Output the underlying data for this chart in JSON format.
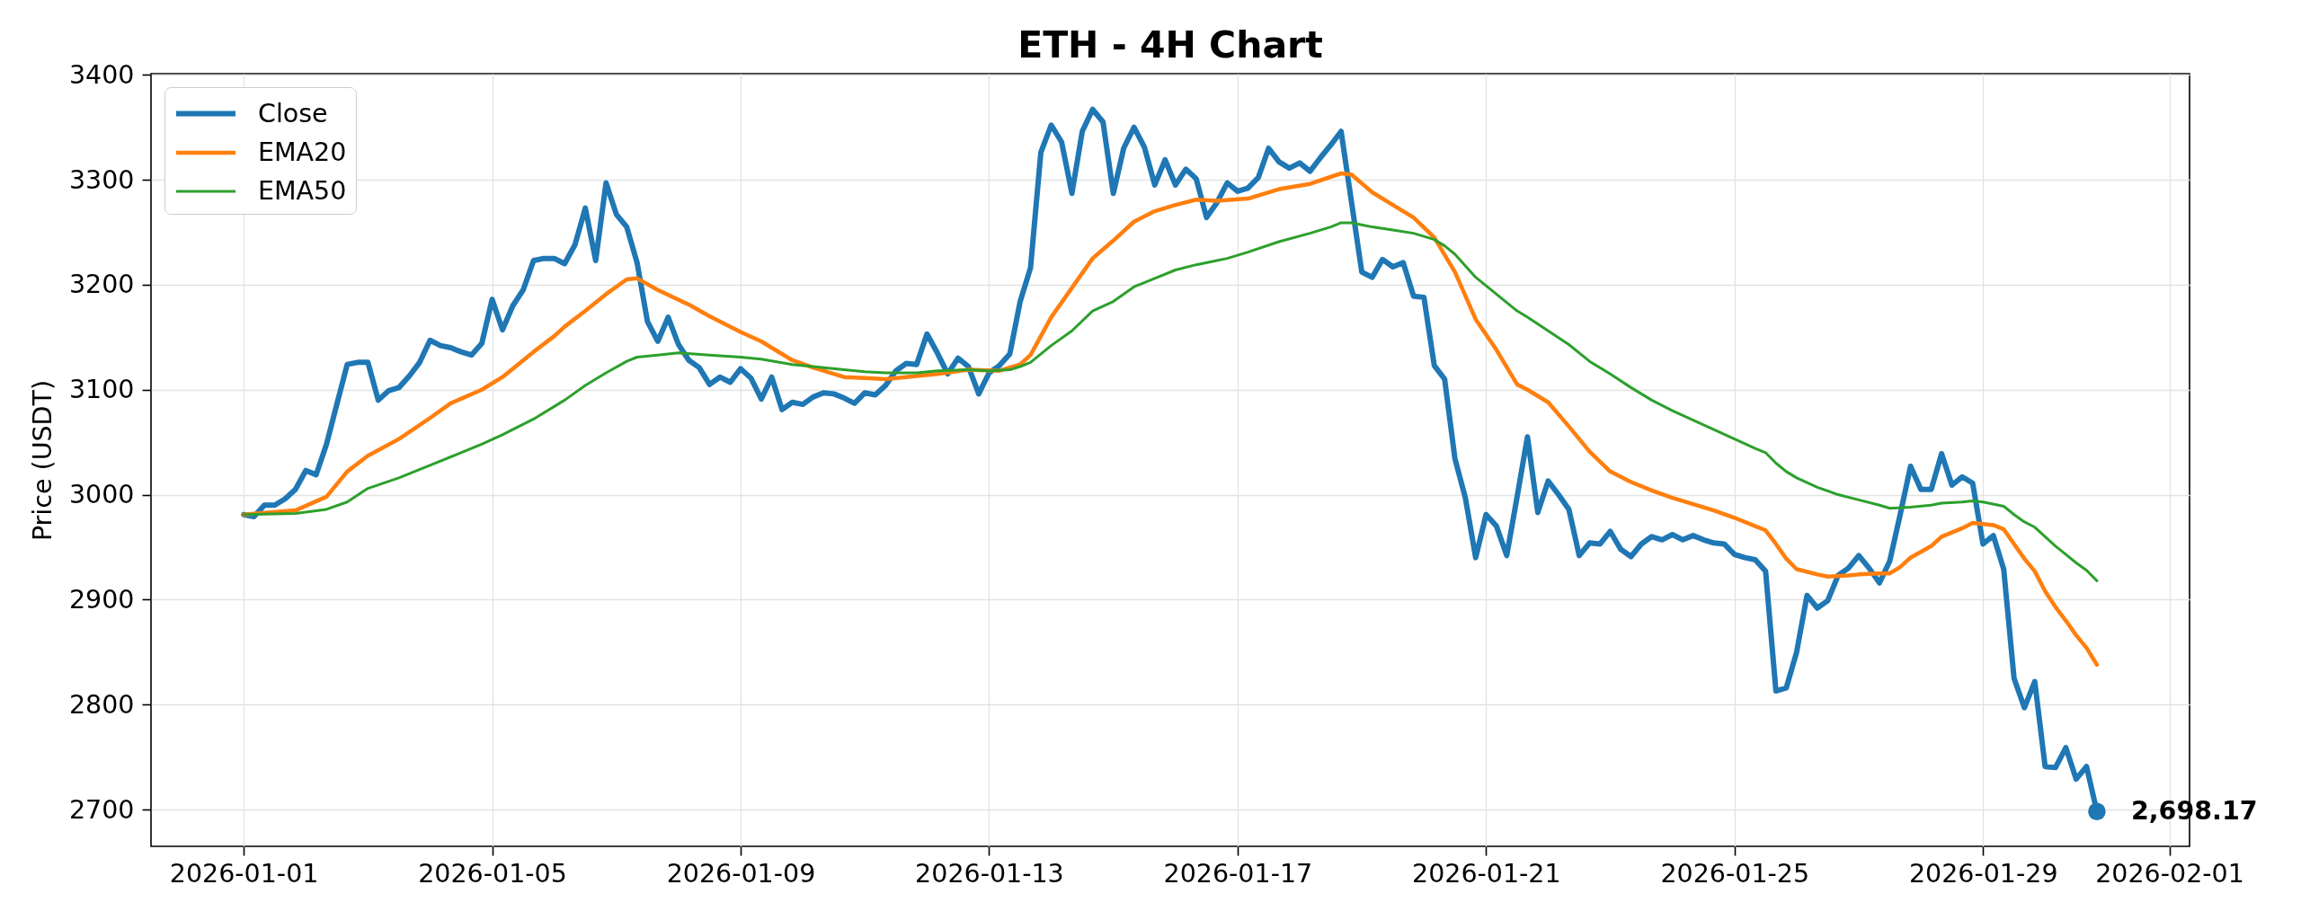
{
  "chart_data": {
    "type": "line",
    "title": "ETH - 4H Chart",
    "ylabel": "Price (USDT)",
    "x": [
      "2026-01-01T00:00",
      "2026-01-01T04:00",
      "2026-01-01T08:00",
      "2026-01-01T12:00",
      "2026-01-01T16:00",
      "2026-01-01T20:00",
      "2026-01-02T00:00",
      "2026-01-02T04:00",
      "2026-01-02T08:00",
      "2026-01-02T12:00",
      "2026-01-02T16:00",
      "2026-01-02T20:00",
      "2026-01-03T00:00",
      "2026-01-03T04:00",
      "2026-01-03T08:00",
      "2026-01-03T12:00",
      "2026-01-03T16:00",
      "2026-01-03T20:00",
      "2026-01-04T00:00",
      "2026-01-04T04:00",
      "2026-01-04T08:00",
      "2026-01-04T12:00",
      "2026-01-04T16:00",
      "2026-01-04T20:00",
      "2026-01-05T00:00",
      "2026-01-05T04:00",
      "2026-01-05T08:00",
      "2026-01-05T12:00",
      "2026-01-05T16:00",
      "2026-01-05T20:00",
      "2026-01-06T00:00",
      "2026-01-06T04:00",
      "2026-01-06T08:00",
      "2026-01-06T12:00",
      "2026-01-06T16:00",
      "2026-01-06T20:00",
      "2026-01-07T00:00",
      "2026-01-07T04:00",
      "2026-01-07T08:00",
      "2026-01-07T12:00",
      "2026-01-07T16:00",
      "2026-01-07T20:00",
      "2026-01-08T00:00",
      "2026-01-08T04:00",
      "2026-01-08T08:00",
      "2026-01-08T12:00",
      "2026-01-08T16:00",
      "2026-01-08T20:00",
      "2026-01-09T00:00",
      "2026-01-09T04:00",
      "2026-01-09T08:00",
      "2026-01-09T12:00",
      "2026-01-09T16:00",
      "2026-01-09T20:00",
      "2026-01-10T00:00",
      "2026-01-10T04:00",
      "2026-01-10T08:00",
      "2026-01-10T12:00",
      "2026-01-10T16:00",
      "2026-01-10T20:00",
      "2026-01-11T00:00",
      "2026-01-11T04:00",
      "2026-01-11T08:00",
      "2026-01-11T12:00",
      "2026-01-11T16:00",
      "2026-01-11T20:00",
      "2026-01-12T00:00",
      "2026-01-12T04:00",
      "2026-01-12T08:00",
      "2026-01-12T12:00",
      "2026-01-12T16:00",
      "2026-01-12T20:00",
      "2026-01-13T00:00",
      "2026-01-13T04:00",
      "2026-01-13T08:00",
      "2026-01-13T12:00",
      "2026-01-13T16:00",
      "2026-01-13T20:00",
      "2026-01-14T00:00",
      "2026-01-14T04:00",
      "2026-01-14T08:00",
      "2026-01-14T12:00",
      "2026-01-14T16:00",
      "2026-01-14T20:00",
      "2026-01-15T00:00",
      "2026-01-15T04:00",
      "2026-01-15T08:00",
      "2026-01-15T12:00",
      "2026-01-15T16:00",
      "2026-01-15T20:00",
      "2026-01-16T00:00",
      "2026-01-16T04:00",
      "2026-01-16T08:00",
      "2026-01-16T12:00",
      "2026-01-16T16:00",
      "2026-01-16T20:00",
      "2026-01-17T00:00",
      "2026-01-17T04:00",
      "2026-01-17T08:00",
      "2026-01-17T12:00",
      "2026-01-17T16:00",
      "2026-01-17T20:00",
      "2026-01-18T00:00",
      "2026-01-18T04:00",
      "2026-01-18T08:00",
      "2026-01-18T12:00",
      "2026-01-18T16:00",
      "2026-01-18T20:00",
      "2026-01-19T00:00",
      "2026-01-19T04:00",
      "2026-01-19T08:00",
      "2026-01-19T12:00",
      "2026-01-19T16:00",
      "2026-01-19T20:00",
      "2026-01-20T00:00",
      "2026-01-20T04:00",
      "2026-01-20T08:00",
      "2026-01-20T12:00",
      "2026-01-20T16:00",
      "2026-01-20T20:00",
      "2026-01-21T00:00",
      "2026-01-21T04:00",
      "2026-01-21T08:00",
      "2026-01-21T12:00",
      "2026-01-21T16:00",
      "2026-01-21T20:00",
      "2026-01-22T00:00",
      "2026-01-22T04:00",
      "2026-01-22T08:00",
      "2026-01-22T12:00",
      "2026-01-22T16:00",
      "2026-01-22T20:00",
      "2026-01-23T00:00",
      "2026-01-23T04:00",
      "2026-01-23T08:00",
      "2026-01-23T12:00",
      "2026-01-23T16:00",
      "2026-01-23T20:00",
      "2026-01-24T00:00",
      "2026-01-24T04:00",
      "2026-01-24T08:00",
      "2026-01-24T12:00",
      "2026-01-24T16:00",
      "2026-01-24T20:00",
      "2026-01-25T00:00",
      "2026-01-25T04:00",
      "2026-01-25T08:00",
      "2026-01-25T12:00",
      "2026-01-25T16:00",
      "2026-01-25T20:00",
      "2026-01-26T00:00",
      "2026-01-26T04:00",
      "2026-01-26T08:00",
      "2026-01-26T12:00",
      "2026-01-26T16:00",
      "2026-01-26T20:00",
      "2026-01-27T00:00",
      "2026-01-27T04:00",
      "2026-01-27T08:00",
      "2026-01-27T12:00",
      "2026-01-27T16:00",
      "2026-01-27T20:00",
      "2026-01-28T00:00",
      "2026-01-28T04:00",
      "2026-01-28T08:00",
      "2026-01-28T12:00",
      "2026-01-28T16:00",
      "2026-01-28T20:00",
      "2026-01-29T00:00",
      "2026-01-29T04:00",
      "2026-01-29T08:00",
      "2026-01-29T12:00",
      "2026-01-29T16:00",
      "2026-01-29T20:00",
      "2026-01-30T00:00",
      "2026-01-30T04:00",
      "2026-01-30T08:00",
      "2026-01-30T12:00",
      "2026-01-30T16:00",
      "2026-01-30T20:00"
    ],
    "series": [
      {
        "name": "Close",
        "color": "#1f77b4",
        "values": [
          2981,
          2979,
          2990,
          2990,
          2996,
          3005,
          3023,
          3019,
          3048,
          3086,
          3124,
          3126,
          3126,
          3090,
          3099,
          3102,
          3113,
          3126,
          3147,
          3142,
          3140,
          3136,
          3133,
          3144,
          3186,
          3157,
          3180,
          3195,
          3223,
          3225,
          3225,
          3220,
          3238,
          3273,
          3223,
          3297,
          3267,
          3255,
          3221,
          3165,
          3146,
          3169,
          3143,
          3128,
          3121,
          3105,
          3112,
          3107,
          3120,
          3111,
          3091,
          3112,
          3081,
          3088,
          3086,
          3093,
          3097,
          3096,
          3092,
          3087,
          3097,
          3095,
          3104,
          3118,
          3125,
          3124,
          3153,
          3135,
          3115,
          3130,
          3122,
          3096,
          3116,
          3123,
          3134,
          3184,
          3216,
          3326,
          3352,
          3336,
          3287,
          3346,
          3367,
          3355,
          3287,
          3330,
          3350,
          3331,
          3295,
          3319,
          3295,
          3310,
          3301,
          3264,
          3278,
          3297,
          3289,
          3292,
          3302,
          3330,
          3317,
          3311,
          3316,
          3308,
          3321,
          3333,
          3346,
          3279,
          3212,
          3207,
          3224,
          3217,
          3221,
          3189,
          3188,
          3123,
          3110,
          3034,
          2997,
          2940,
          2981,
          2970,
          2942,
          2998,
          3055,
          2983,
          3013,
          3000,
          2986,
          2942,
          2954,
          2953,
          2965,
          2948,
          2941,
          2953,
          2960,
          2957,
          2962,
          2957,
          2961,
          2957,
          2954,
          2953,
          2943,
          2940,
          2938,
          2927,
          2813,
          2816,
          2850,
          2904,
          2892,
          2899,
          2923,
          2930,
          2942,
          2930,
          2916,
          2937,
          2981,
          3027,
          3005,
          3005,
          3039,
          3009,
          3017,
          3011,
          2953,
          2961,
          2929,
          2825,
          2797,
          2822,
          2741,
          2740,
          2759,
          2729,
          2741,
          2698.17
        ]
      },
      {
        "name": "EMA20",
        "color": "#ff7f0e",
        "x": [
          "2026-01-01T00:00",
          "2026-01-01T20:00",
          "2026-01-02T08:00",
          "2026-01-02T16:00",
          "2026-01-03T00:00",
          "2026-01-03T12:00",
          "2026-01-04T00:00",
          "2026-01-04T08:00",
          "2026-01-04T20:00",
          "2026-01-05T04:00",
          "2026-01-05T16:00",
          "2026-01-06T00:00",
          "2026-01-06T04:00",
          "2026-01-06T12:00",
          "2026-01-06T20:00",
          "2026-01-07T04:00",
          "2026-01-07T08:00",
          "2026-01-07T16:00",
          "2026-01-08T04:00",
          "2026-01-08T12:00",
          "2026-01-09T00:00",
          "2026-01-09T08:00",
          "2026-01-09T20:00",
          "2026-01-10T04:00",
          "2026-01-10T16:00",
          "2026-01-11T00:00",
          "2026-01-11T08:00",
          "2026-01-11T20:00",
          "2026-01-12T04:00",
          "2026-01-12T16:00",
          "2026-01-13T04:00",
          "2026-01-13T12:00",
          "2026-01-13T16:00",
          "2026-01-14T00:00",
          "2026-01-14T08:00",
          "2026-01-14T16:00",
          "2026-01-15T00:00",
          "2026-01-15T08:00",
          "2026-01-15T16:00",
          "2026-01-16T00:00",
          "2026-01-16T08:00",
          "2026-01-16T16:00",
          "2026-01-17T04:00",
          "2026-01-17T16:00",
          "2026-01-18T04:00",
          "2026-01-18T16:00",
          "2026-01-18T20:00",
          "2026-01-19T04:00",
          "2026-01-19T12:00",
          "2026-01-19T20:00",
          "2026-01-20T04:00",
          "2026-01-20T12:00",
          "2026-01-20T20:00",
          "2026-01-21T04:00",
          "2026-01-21T12:00",
          "2026-01-21T16:00",
          "2026-01-22T00:00",
          "2026-01-22T08:00",
          "2026-01-22T16:00",
          "2026-01-23T00:00",
          "2026-01-23T08:00",
          "2026-01-23T16:00",
          "2026-01-24T00:00",
          "2026-01-24T08:00",
          "2026-01-24T16:00",
          "2026-01-25T00:00",
          "2026-01-25T08:00",
          "2026-01-25T12:00",
          "2026-01-25T16:00",
          "2026-01-25T20:00",
          "2026-01-26T00:00",
          "2026-01-26T08:00",
          "2026-01-26T12:00",
          "2026-01-26T20:00",
          "2026-01-27T00:00",
          "2026-01-27T08:00",
          "2026-01-27T12:00",
          "2026-01-27T16:00",
          "2026-01-27T20:00",
          "2026-01-28T04:00",
          "2026-01-28T08:00",
          "2026-01-28T16:00",
          "2026-01-28T20:00",
          "2026-01-29T04:00",
          "2026-01-29T08:00",
          "2026-01-29T12:00",
          "2026-01-29T16:00",
          "2026-01-29T20:00",
          "2026-01-30T00:00",
          "2026-01-30T04:00",
          "2026-01-30T08:00",
          "2026-01-30T12:00",
          "2026-01-30T16:00",
          "2026-01-30T20:00"
        ],
        "values": [
          2981,
          2985,
          2998,
          3022,
          3037,
          3053,
          3073,
          3087,
          3100,
          3112,
          3136,
          3151,
          3160,
          3175,
          3191,
          3205,
          3206,
          3195,
          3181,
          3170,
          3155,
          3146,
          3128,
          3121,
          3112,
          3111,
          3110,
          3113,
          3115,
          3119,
          3118,
          3124,
          3133,
          3169,
          3197,
          3225,
          3242,
          3260,
          3270,
          3276,
          3281,
          3280,
          3282,
          3291,
          3296,
          3306,
          3305,
          3288,
          3276,
          3264,
          3245,
          3212,
          3167,
          3138,
          3105,
          3100,
          3088,
          3065,
          3041,
          3022,
          3012,
          3004,
          2997,
          2991,
          2985,
          2978,
          2970,
          2966,
          2953,
          2939,
          2929,
          2924,
          2922,
          2923,
          2924,
          2925,
          2925,
          2931,
          2940,
          2951,
          2960,
          2968,
          2973,
          2971,
          2967,
          2953,
          2939,
          2927,
          2908,
          2893,
          2880,
          2866,
          2854,
          2838
        ]
      },
      {
        "name": "EMA50",
        "color": "#2ca02c",
        "x": [
          "2026-01-01T00:00",
          "2026-01-01T20:00",
          "2026-01-02T08:00",
          "2026-01-02T16:00",
          "2026-01-03T00:00",
          "2026-01-03T12:00",
          "2026-01-04T00:00",
          "2026-01-04T08:00",
          "2026-01-04T20:00",
          "2026-01-05T04:00",
          "2026-01-05T16:00",
          "2026-01-06T04:00",
          "2026-01-06T12:00",
          "2026-01-06T20:00",
          "2026-01-07T04:00",
          "2026-01-07T08:00",
          "2026-01-07T16:00",
          "2026-01-08T00:00",
          "2026-01-08T12:00",
          "2026-01-09T00:00",
          "2026-01-09T08:00",
          "2026-01-09T20:00",
          "2026-01-10T04:00",
          "2026-01-10T16:00",
          "2026-01-11T00:00",
          "2026-01-11T08:00",
          "2026-01-11T20:00",
          "2026-01-12T04:00",
          "2026-01-12T16:00",
          "2026-01-13T00:00",
          "2026-01-13T08:00",
          "2026-01-13T12:00",
          "2026-01-13T16:00",
          "2026-01-14T00:00",
          "2026-01-14T08:00",
          "2026-01-14T16:00",
          "2026-01-15T00:00",
          "2026-01-15T08:00",
          "2026-01-15T16:00",
          "2026-01-16T00:00",
          "2026-01-16T08:00",
          "2026-01-16T16:00",
          "2026-01-16T20:00",
          "2026-01-17T04:00",
          "2026-01-17T16:00",
          "2026-01-18T04:00",
          "2026-01-18T12:00",
          "2026-01-18T16:00",
          "2026-01-18T20:00",
          "2026-01-19T04:00",
          "2026-01-19T12:00",
          "2026-01-19T20:00",
          "2026-01-20T04:00",
          "2026-01-20T08:00",
          "2026-01-20T12:00",
          "2026-01-20T20:00",
          "2026-01-21T04:00",
          "2026-01-21T12:00",
          "2026-01-21T16:00",
          "2026-01-22T00:00",
          "2026-01-22T08:00",
          "2026-01-22T16:00",
          "2026-01-23T00:00",
          "2026-01-23T08:00",
          "2026-01-23T16:00",
          "2026-01-24T00:00",
          "2026-01-24T08:00",
          "2026-01-24T16:00",
          "2026-01-25T00:00",
          "2026-01-25T08:00",
          "2026-01-25T12:00",
          "2026-01-25T16:00",
          "2026-01-25T20:00",
          "2026-01-26T00:00",
          "2026-01-26T08:00",
          "2026-01-26T16:00",
          "2026-01-27T00:00",
          "2026-01-27T08:00",
          "2026-01-27T12:00",
          "2026-01-27T20:00",
          "2026-01-28T04:00",
          "2026-01-28T08:00",
          "2026-01-28T16:00",
          "2026-01-28T20:00",
          "2026-01-29T00:00",
          "2026-01-29T08:00",
          "2026-01-29T12:00",
          "2026-01-29T16:00",
          "2026-01-29T20:00",
          "2026-01-30T00:00",
          "2026-01-30T04:00",
          "2026-01-30T08:00",
          "2026-01-30T12:00",
          "2026-01-30T16:00",
          "2026-01-30T20:00"
        ],
        "values": [
          2981,
          2982,
          2986,
          2993,
          3006,
          3016,
          3028,
          3036,
          3048,
          3057,
          3072,
          3090,
          3104,
          3116,
          3127,
          3131,
          3133,
          3135,
          3133,
          3131,
          3129,
          3124,
          3122,
          3119,
          3117,
          3116,
          3116,
          3118,
          3119,
          3118,
          3119,
          3122,
          3126,
          3142,
          3156,
          3175,
          3184,
          3198,
          3206,
          3214,
          3219,
          3223,
          3225,
          3231,
          3241,
          3249,
          3255,
          3259,
          3259,
          3255,
          3252,
          3249,
          3243,
          3237,
          3229,
          3207,
          3191,
          3175,
          3169,
          3156,
          3143,
          3127,
          3115,
          3102,
          3090,
          3080,
          3071,
          3062,
          3053,
          3044,
          3040,
          3030,
          3022,
          3016,
          3007,
          3000,
          2995,
          2990,
          2987,
          2988,
          2990,
          2992,
          2993,
          2994,
          2993,
          2989,
          2981,
          2974,
          2969,
          2960,
          2951,
          2943,
          2935,
          2928,
          2918
        ]
      },
      {
        "type": "scatter",
        "color": "#1f77b4",
        "x": [
          "2026-01-30T20:00"
        ],
        "values": [
          2698.17
        ]
      }
    ],
    "annotations": [
      {
        "text": "2,698.17",
        "x": "2026-01-30T20:00",
        "y": 2698.17
      }
    ],
    "xlim": [
      "2025-12-30T12:12",
      "2026-02-01T07:48"
    ],
    "xticks": [
      "2026-01-01",
      "2026-01-05",
      "2026-01-09",
      "2026-01-13",
      "2026-01-17",
      "2026-01-21",
      "2026-01-25",
      "2026-01-29",
      "2026-02-01"
    ],
    "ylim": [
      2665,
      3401
    ],
    "yticks": [
      2700,
      2800,
      2900,
      3000,
      3100,
      3200,
      3300,
      3400
    ],
    "grid": true,
    "legend": "top left"
  }
}
